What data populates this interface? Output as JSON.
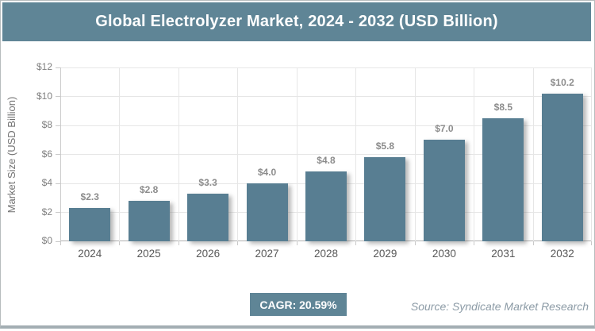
{
  "header": {
    "title": "Global Electrolyzer Market, 2024 - 2032 (USD Billion)"
  },
  "colors": {
    "accent": "#5f8596",
    "bar_fill": "#587e92",
    "gridline": "#e6e6e6",
    "value_label": "#8c8c8c",
    "axis_label": "#595959"
  },
  "chart_data": {
    "type": "bar",
    "title": "Global Electrolyzer Market, 2024 - 2032 (USD Billion)",
    "categories": [
      "2024",
      "2025",
      "2026",
      "2027",
      "2028",
      "2029",
      "2030",
      "2031",
      "2032"
    ],
    "values": [
      2.3,
      2.8,
      3.3,
      4.0,
      4.8,
      5.8,
      7.0,
      8.5,
      10.2
    ],
    "value_labels": [
      "$2.3",
      "$2.8",
      "$3.3",
      "$4.0",
      "$4.8",
      "$5.8",
      "$7.0",
      "$8.5",
      "$10.2"
    ],
    "xlabel": "",
    "ylabel": "Market Size (USD Billion)",
    "ylim": [
      0,
      12
    ],
    "y_ticks": [
      0,
      2,
      4,
      6,
      8,
      10,
      12
    ],
    "y_tick_labels": [
      "$0",
      "$2",
      "$4",
      "$6",
      "$8",
      "$10",
      "$12"
    ],
    "grid": true,
    "legend": "none"
  },
  "footer": {
    "cagr_label": "CAGR: 20.59%",
    "source": "Source: Syndicate Market Research"
  }
}
